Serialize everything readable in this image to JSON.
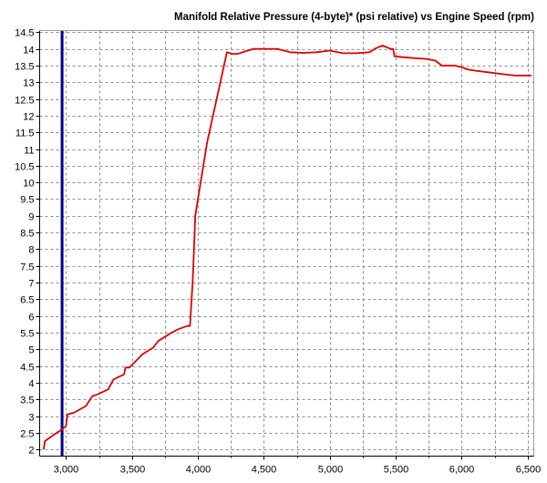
{
  "chart_data": {
    "type": "line",
    "title": "Manifold Relative Pressure (4-byte)* (psi relative) vs Engine Speed (rpm)",
    "xlabel": "",
    "ylabel": "",
    "xlim": [
      2800,
      6550
    ],
    "ylim": [
      1.8,
      14.55
    ],
    "x_ticks": [
      3000,
      3500,
      4000,
      4500,
      5000,
      5500,
      6000,
      6500
    ],
    "x_tick_labels": [
      "3,000",
      "3,500",
      "4,000",
      "4,500",
      "5,000",
      "5,500",
      "6,000",
      "6,500"
    ],
    "x_minor_step": 250,
    "y_ticks": [
      2,
      2.5,
      3,
      3.5,
      4,
      4.5,
      5,
      5.5,
      6,
      6.5,
      7,
      7.5,
      8,
      8.5,
      9,
      9.5,
      10,
      10.5,
      11,
      11.5,
      12,
      12.5,
      13,
      13.5,
      14,
      14.5
    ],
    "y_tick_labels": [
      "2",
      "2.5",
      "3",
      "3.5",
      "4",
      "4.5",
      "5",
      "5.5",
      "6",
      "6.5",
      "7",
      "7.5",
      "8",
      "8.5",
      "9",
      "9.5",
      "10",
      "10.5",
      "11",
      "11.5",
      "12",
      "12.5",
      "13",
      "13.5",
      "14",
      "14.5"
    ],
    "grid": true,
    "cursor_x": 2970,
    "cursor_color": "#00008b",
    "series": [
      {
        "color": "#e00000",
        "x": [
          2830,
          2840,
          2930,
          2970,
          3000,
          3010,
          3060,
          3150,
          3200,
          3240,
          3320,
          3360,
          3440,
          3450,
          3480,
          3580,
          3660,
          3700,
          3720,
          3800,
          3850,
          3920,
          3940,
          3960,
          3970,
          3980,
          4000,
          4070,
          4170,
          4220,
          4260,
          4300,
          4420,
          4600,
          4700,
          4800,
          4900,
          5000,
          5100,
          5200,
          5300,
          5350,
          5400,
          5460,
          5480,
          5490,
          5560,
          5650,
          5730,
          5800,
          5850,
          5950,
          6000,
          6050,
          6100,
          6200,
          6300,
          6400,
          6450,
          6480,
          6530
        ],
        "y": [
          2.0,
          2.25,
          2.5,
          2.6,
          2.7,
          3.05,
          3.1,
          3.3,
          3.6,
          3.65,
          3.8,
          4.1,
          4.25,
          4.45,
          4.45,
          4.85,
          5.05,
          5.25,
          5.3,
          5.5,
          5.6,
          5.7,
          5.7,
          7.0,
          8.0,
          9.0,
          9.5,
          11.2,
          13.0,
          13.9,
          13.85,
          13.85,
          14.0,
          14.0,
          13.9,
          13.88,
          13.9,
          13.95,
          13.87,
          13.87,
          13.9,
          14.02,
          14.1,
          14.0,
          14.0,
          13.78,
          13.75,
          13.72,
          13.7,
          13.65,
          13.5,
          13.5,
          13.45,
          13.38,
          13.35,
          13.3,
          13.25,
          13.2,
          13.2,
          13.2,
          13.2
        ]
      }
    ]
  }
}
